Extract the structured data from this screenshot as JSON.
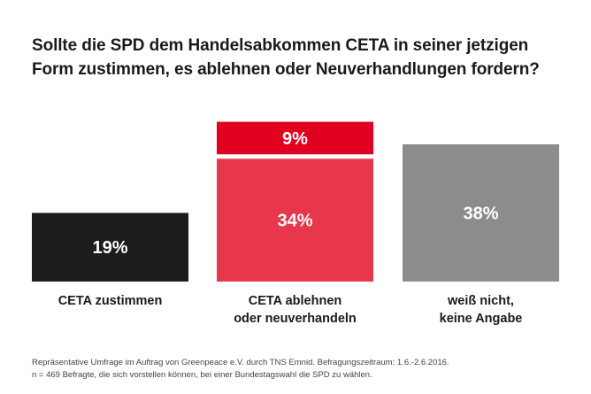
{
  "title_lines": [
    "Sollte die SPD dem Handelsabkommen CETA in seiner jetzigen",
    "Form zustimmen, es ablehnen oder Neuverhandlungen fordern?"
  ],
  "footnote_lines": [
    "Repräsentative Umfrage im Auftrag von Greenpeace e.V. durch TNS Emnid. Befragungszeitraum: 1.6.-2.6.2016.",
    "n = 469 Befragte, die sich vorstellen können, bei einer Bundestagswahl die SPD zu wählen."
  ],
  "colors": {
    "zustimmen": "#1d1b1e",
    "ablehnen": "#e8364a",
    "neuverhandeln": "#e1001f",
    "weiss_nicht": "#8c8c8c"
  },
  "chart_data": {
    "type": "bar",
    "stacked": true,
    "unit": "%",
    "categories": [
      [
        "CETA zustimmen"
      ],
      [
        "CETA ablehnen",
        "oder neuverhandeln"
      ],
      [
        "weiß nicht,",
        "keine Angabe"
      ]
    ],
    "bars": [
      {
        "segments": [
          {
            "value": 19,
            "label": "19%",
            "color_key": "zustimmen"
          }
        ]
      },
      {
        "segments": [
          {
            "value": 34,
            "label": "34%",
            "color_key": "ablehnen"
          },
          {
            "value": 9,
            "label": "9%",
            "color_key": "neuverhandeln"
          }
        ]
      },
      {
        "segments": [
          {
            "value": 38,
            "label": "38%",
            "color_key": "weiss_nicht"
          }
        ]
      }
    ]
  }
}
